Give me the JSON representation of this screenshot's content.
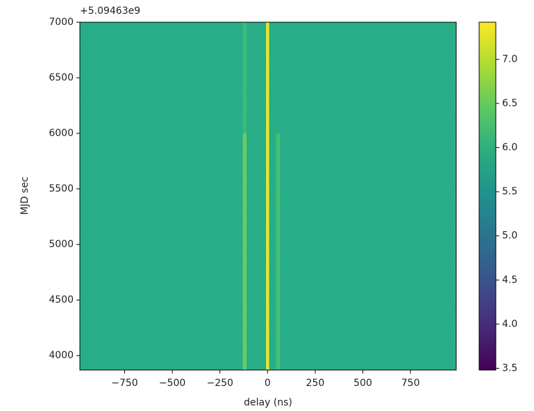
{
  "chart_data": {
    "type": "heatmap",
    "offset_text": "+5.09463e9",
    "xlabel": "delay (ns)",
    "ylabel": "MJD sec",
    "xbins": [
      -985,
      -130,
      -110,
      -8,
      8,
      45,
      65,
      990
    ],
    "ybins": [
      3870,
      6000,
      7000
    ],
    "z": [
      [
        5.9,
        6.5,
        5.9,
        7.3,
        5.9,
        6.2,
        5.9
      ],
      [
        5.9,
        6.1,
        5.9,
        7.3,
        5.9,
        5.9,
        5.9
      ]
    ],
    "colormap": "viridis",
    "clim": [
      3.48,
      7.42
    ],
    "xlim": [
      -985,
      990
    ],
    "ylim": [
      3870,
      7000
    ],
    "xticks": [
      {
        "value": -750,
        "label": "−750"
      },
      {
        "value": -500,
        "label": "−500"
      },
      {
        "value": -250,
        "label": "−250"
      },
      0,
      250,
      500,
      750
    ],
    "yticks": [
      4000,
      4500,
      5000,
      5500,
      6000,
      6500,
      7000
    ],
    "cticks": [
      3.5,
      {
        "value": 4,
        "label": "4.0"
      },
      4.5,
      {
        "value": 5,
        "label": "5.0"
      },
      5.5,
      {
        "value": 6,
        "label": "6.0"
      },
      6.5,
      {
        "value": 7,
        "label": "7.0"
      }
    ]
  }
}
